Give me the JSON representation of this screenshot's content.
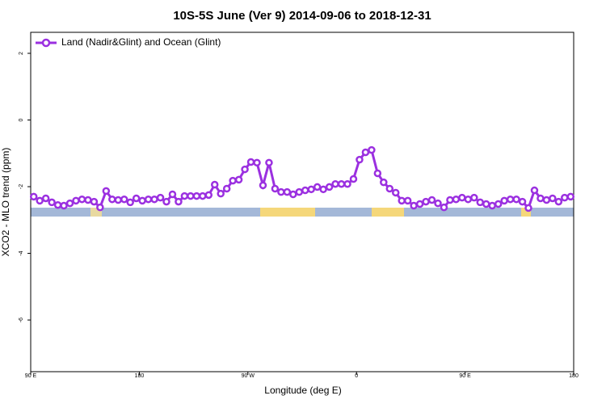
{
  "chart_data": {
    "type": "line",
    "title": "10S-5S June (Ver 9)   2014-09-06 to 2018-12-31",
    "x_label": "Longitude (deg E)",
    "y_label": "XCO2 - MLO trend (ppm)",
    "xlim": [
      90,
      540
    ],
    "xticks": [
      {
        "value": 90,
        "label": "90 E"
      },
      180,
      {
        "value": 270,
        "label": "90 W"
      },
      {
        "value": 360,
        "label": "0"
      },
      {
        "value": 450,
        "label": "90 E"
      },
      {
        "value": 540,
        "label": "180"
      }
    ],
    "ylim": [
      -7.55,
      2.63
    ],
    "yticks": [
      2,
      0,
      -2,
      -4,
      -6
    ],
    "legend": "top-left",
    "x": [
      92.5,
      97.5,
      102.5,
      107.5,
      112.5,
      117.5,
      122.5,
      127.5,
      132.5,
      137.5,
      142.5,
      147.5,
      152.5,
      157.5,
      162.5,
      167.5,
      172.5,
      177.5,
      182.5,
      187.5,
      192.5,
      197.5,
      202.5,
      207.5,
      212.5,
      217.5,
      222.5,
      227.5,
      232.5,
      237.5,
      242.5,
      247.5,
      252.5,
      257.5,
      262.5,
      267.5,
      272.5,
      277.5,
      282.5,
      287.5,
      292.5,
      297.5,
      302.5,
      307.5,
      312.5,
      317.5,
      322.5,
      327.5,
      332.5,
      337.5,
      342.5,
      347.5,
      352.5,
      357.5,
      362.5,
      367.5,
      372.5,
      377.5,
      382.5,
      387.5,
      392.5,
      397.5,
      402.5,
      407.5,
      412.5,
      417.5,
      422.5,
      427.5,
      432.5,
      437.5,
      442.5,
      447.5,
      452.5,
      457.5,
      462.5,
      467.5,
      472.5,
      477.5,
      482.5,
      487.5,
      492.5,
      497.5,
      502.5,
      507.5,
      512.5,
      517.5,
      522.5,
      527.5,
      532.5,
      537.5
    ],
    "series": [
      {
        "name": "Land (Nadir&Glint) and Ocean (Glint)",
        "color": "#9b30e0",
        "values": [
          -2.3,
          -2.42,
          -2.35,
          -2.47,
          -2.55,
          -2.57,
          -2.5,
          -2.42,
          -2.38,
          -2.4,
          -2.45,
          -2.62,
          -2.13,
          -2.38,
          -2.4,
          -2.38,
          -2.47,
          -2.35,
          -2.42,
          -2.38,
          -2.38,
          -2.33,
          -2.45,
          -2.23,
          -2.45,
          -2.28,
          -2.28,
          -2.28,
          -2.28,
          -2.25,
          -1.94,
          -2.21,
          -2.06,
          -1.82,
          -1.79,
          -1.48,
          -1.26,
          -1.28,
          -1.96,
          -1.28,
          -2.06,
          -2.16,
          -2.16,
          -2.23,
          -2.16,
          -2.11,
          -2.08,
          -2.01,
          -2.08,
          -2.01,
          -1.92,
          -1.92,
          -1.92,
          -1.77,
          -1.19,
          -0.97,
          -0.9,
          -1.6,
          -1.87,
          -2.06,
          -2.18,
          -2.42,
          -2.42,
          -2.57,
          -2.52,
          -2.45,
          -2.4,
          -2.5,
          -2.62,
          -2.4,
          -2.38,
          -2.33,
          -2.38,
          -2.33,
          -2.47,
          -2.52,
          -2.57,
          -2.52,
          -2.42,
          -2.38,
          -2.38,
          -2.45,
          -2.64,
          -2.11,
          -2.35,
          -2.4,
          -2.35,
          -2.45,
          -2.33,
          -2.3
        ]
      }
    ]
  }
}
